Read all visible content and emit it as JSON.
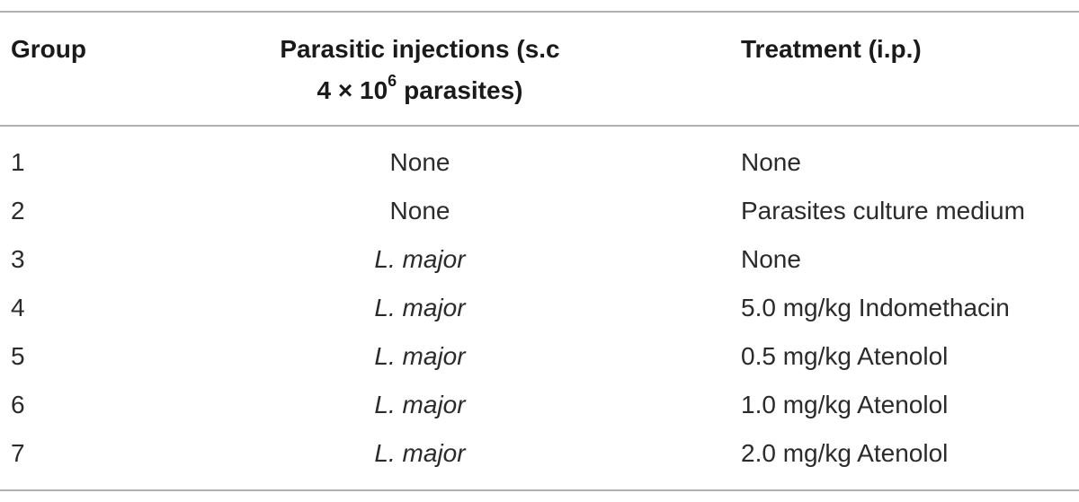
{
  "table": {
    "header": [
      "Group",
      {
        "line1": "Parasitic injections (s.c",
        "line2": "4 × 10",
        "line2_sup": "6",
        "line2_rest": "parasites)"
      },
      "Treatment (i.p.)"
    ],
    "rows": [
      {
        "group": "1",
        "injection": "None",
        "injection_italic": false,
        "treatment": "None"
      },
      {
        "group": "2",
        "injection": "None",
        "injection_italic": false,
        "treatment": "Parasites culture medium"
      },
      {
        "group": "3",
        "injection": "L. major",
        "injection_italic": true,
        "treatment": "None"
      },
      {
        "group": "4",
        "injection": "L. major",
        "injection_italic": true,
        "treatment": "5.0 mg/kg Indomethacin"
      },
      {
        "group": "5",
        "injection": "L. major",
        "injection_italic": true,
        "treatment": "0.5 mg/kg Atenolol"
      },
      {
        "group": "6",
        "injection": "L. major",
        "injection_italic": true,
        "treatment": "1.0 mg/kg Atenolol"
      },
      {
        "group": "7",
        "injection": "L. major",
        "injection_italic": true,
        "treatment": "2.0 mg/kg Atenolol"
      }
    ]
  }
}
